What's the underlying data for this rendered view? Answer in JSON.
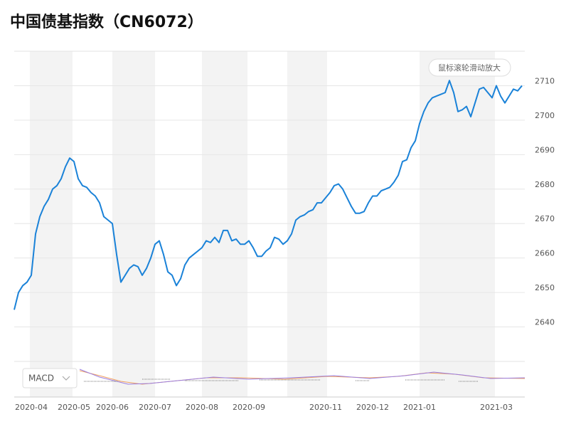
{
  "chart_data": {
    "type": "line",
    "title": "中国债基指数（CN6072）",
    "color": "#1a82d8",
    "grid": true,
    "ylim": [
      2630,
      2720
    ],
    "yticks": [
      2640,
      2650,
      2660,
      2670,
      2680,
      2690,
      2700,
      2710
    ],
    "categories": [
      null,
      null,
      null,
      null,
      "2020-04",
      null,
      null,
      null,
      null,
      null,
      null,
      null,
      null,
      null,
      "2020-05",
      null,
      null,
      null,
      null,
      null,
      null,
      null,
      null,
      "2020-06",
      null,
      null,
      null,
      null,
      null,
      null,
      null,
      null,
      null,
      "2020-07",
      null,
      null,
      null,
      null,
      null,
      null,
      null,
      null,
      null,
      null,
      "2020-08",
      null,
      null,
      null,
      null,
      null,
      null,
      null,
      null,
      null,
      null,
      "2020-09",
      null,
      null,
      null,
      null,
      null,
      null,
      null,
      null,
      null,
      null,
      null,
      null,
      null,
      null,
      null,
      null,
      null,
      "2020-11",
      null,
      null,
      null,
      null,
      null,
      null,
      null,
      null,
      null,
      null,
      "2020-12",
      null,
      null,
      null,
      null,
      null,
      null,
      null,
      null,
      null,
      null,
      "2021-01",
      null,
      null,
      null,
      null,
      null,
      null,
      null,
      null,
      null,
      null,
      null,
      null,
      null,
      null,
      null,
      null,
      null,
      "2021-03",
      null,
      null,
      null,
      null,
      null,
      null
    ],
    "values": [
      2645,
      2650,
      2652,
      2653,
      2655,
      2667,
      2672,
      2675,
      2677,
      2680,
      2681,
      2683,
      2686.5,
      2689,
      2688,
      2683,
      2681,
      2680.5,
      2679,
      2678,
      2676,
      2672,
      2671,
      2670,
      2661,
      2653,
      2655,
      2657,
      2658,
      2657.5,
      2655,
      2657,
      2660,
      2664,
      2665,
      2661,
      2656,
      2655,
      2652,
      2654,
      2658,
      2660,
      2661,
      2662,
      2663,
      2665,
      2664.5,
      2666,
      2664.5,
      2668,
      2668,
      2665,
      2665.5,
      2664,
      2664,
      2665,
      2663,
      2660.5,
      2660.5,
      2662,
      2663,
      2666,
      2665.5,
      2664,
      2665,
      2667,
      2671,
      2672,
      2672.5,
      2673.5,
      2674,
      2676,
      2676,
      2677.5,
      2679,
      2681,
      2681.5,
      2680,
      2677.5,
      2675,
      2673,
      2673,
      2673.5,
      2676,
      2678,
      2678,
      2679.5,
      2680,
      2680.5,
      2682,
      2684,
      2688,
      2688.5,
      2692,
      2694,
      2699,
      2702.5,
      2705,
      2706.5,
      2707,
      2707.5,
      2708,
      2711.5,
      2708,
      2702.5,
      2703,
      2704,
      2701,
      2705,
      2709,
      2709.5,
      2708,
      2706.5,
      2710,
      2707,
      2705,
      2707,
      2709,
      2708.5,
      2710
    ]
  },
  "controls": {
    "zoom_hint": "鼠标滚轮滑动放大",
    "indicator": "MACD"
  }
}
